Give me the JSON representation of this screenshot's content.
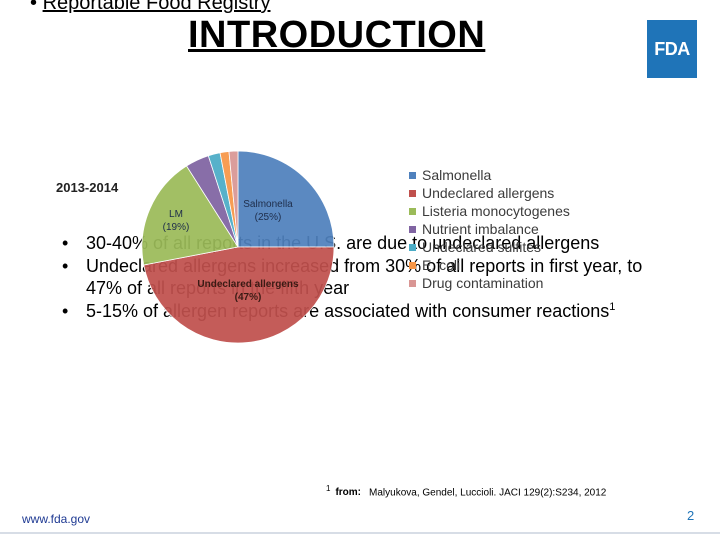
{
  "slide": {
    "top_bullet_marker": "•",
    "top_bullet": "Reportable Food Registry",
    "title": "INTRODUCTION",
    "logo_text": "FDA",
    "bullets": [
      {
        "marker": "•",
        "text": "30-40% of all reports in the U.S. are due to undeclared allergens",
        "sup": ""
      },
      {
        "marker": "•",
        "text": "Undeclared allergens increased from 30% of all reports in first year, to 47% of all reports in the fifth year",
        "sup": ""
      },
      {
        "marker": "•",
        "text": "5-15% of allergen reports are associated with consumer reactions",
        "sup": "1"
      }
    ],
    "footnote": {
      "mark": "1",
      "label": "from:",
      "citation": "Malyukova, Gendel, Luccioli. JACI 129(2):S234, 2012"
    },
    "site_url": "www.fda.gov",
    "page_number": "2"
  },
  "chart_data": {
    "type": "pie",
    "title": "2013-2014",
    "categories": [
      "Salmonella",
      "Undeclared allergens",
      "Listeria monocytogenes",
      "Nutrient imbalance",
      "Undeclared sulfites",
      "E. coli",
      "Drug contamination"
    ],
    "values": [
      25,
      47,
      19,
      4,
      2,
      1.5,
      1.5
    ],
    "slice_labels": [
      {
        "name": "Salmonella",
        "pct": "(25%)"
      },
      {
        "name": "Undeclared allergens",
        "pct": "(47%)"
      },
      {
        "name": "LM",
        "pct": "(19%)"
      }
    ],
    "colors": [
      "#4f81bd",
      "#c0504d",
      "#9bbb59",
      "#8064a2",
      "#4bacc6",
      "#f79646",
      "#d99694"
    ],
    "legend_position": "right"
  }
}
